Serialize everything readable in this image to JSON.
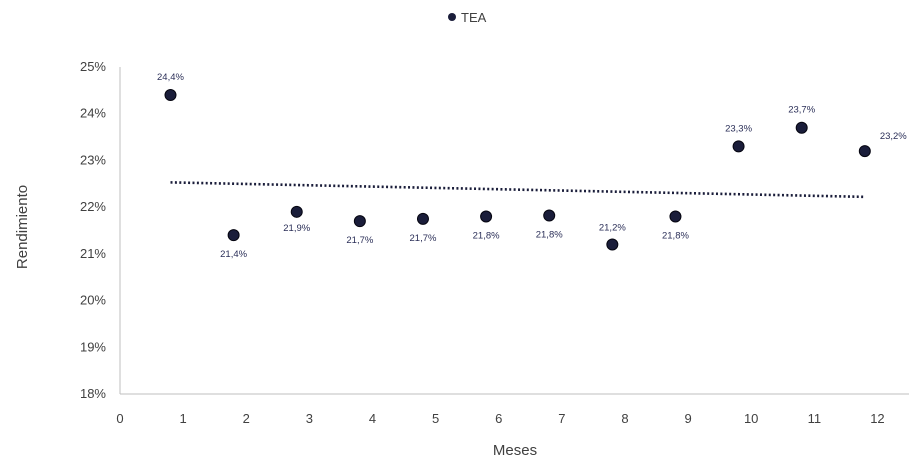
{
  "chart_data": {
    "type": "scatter",
    "legend": {
      "position": "top"
    },
    "series": [
      {
        "name": "TEA",
        "color": "#1a1d3a",
        "x": [
          0.8,
          1.8,
          2.8,
          3.8,
          4.8,
          5.8,
          6.8,
          7.8,
          8.8,
          9.8,
          10.8,
          11.8
        ],
        "y": [
          24.4,
          21.4,
          21.9,
          21.7,
          21.75,
          21.8,
          21.82,
          21.2,
          21.8,
          23.3,
          23.7,
          23.2
        ],
        "labels": [
          "24,4%",
          "21,4%",
          "21,9%",
          "21,7%",
          "21,7%",
          "21,8%",
          "21,8%",
          "21,2%",
          "21,8%",
          "23,3%",
          "23,7%",
          "23,2%"
        ]
      }
    ],
    "trendline": {
      "style": "dotted",
      "color": "#1a1d3a",
      "x": [
        0.8,
        11.8
      ],
      "y": [
        22.53,
        22.22
      ]
    },
    "xlabel": "Meses",
    "ylabel": "Rendimiento",
    "xlim": [
      0,
      12.5
    ],
    "ylim": [
      18,
      25
    ],
    "xticks": [
      0,
      1,
      2,
      3,
      4,
      5,
      6,
      7,
      8,
      9,
      10,
      11,
      12
    ],
    "xtick_labels": [
      "0",
      "1",
      "2",
      "3",
      "4",
      "5",
      "6",
      "7",
      "8",
      "9",
      "10",
      "11",
      "12"
    ],
    "yticks": [
      18,
      19,
      20,
      21,
      22,
      23,
      24,
      25
    ],
    "ytick_labels": [
      "18%",
      "19%",
      "20%",
      "21%",
      "22%",
      "23%",
      "24%",
      "25%"
    ],
    "grid": false
  }
}
